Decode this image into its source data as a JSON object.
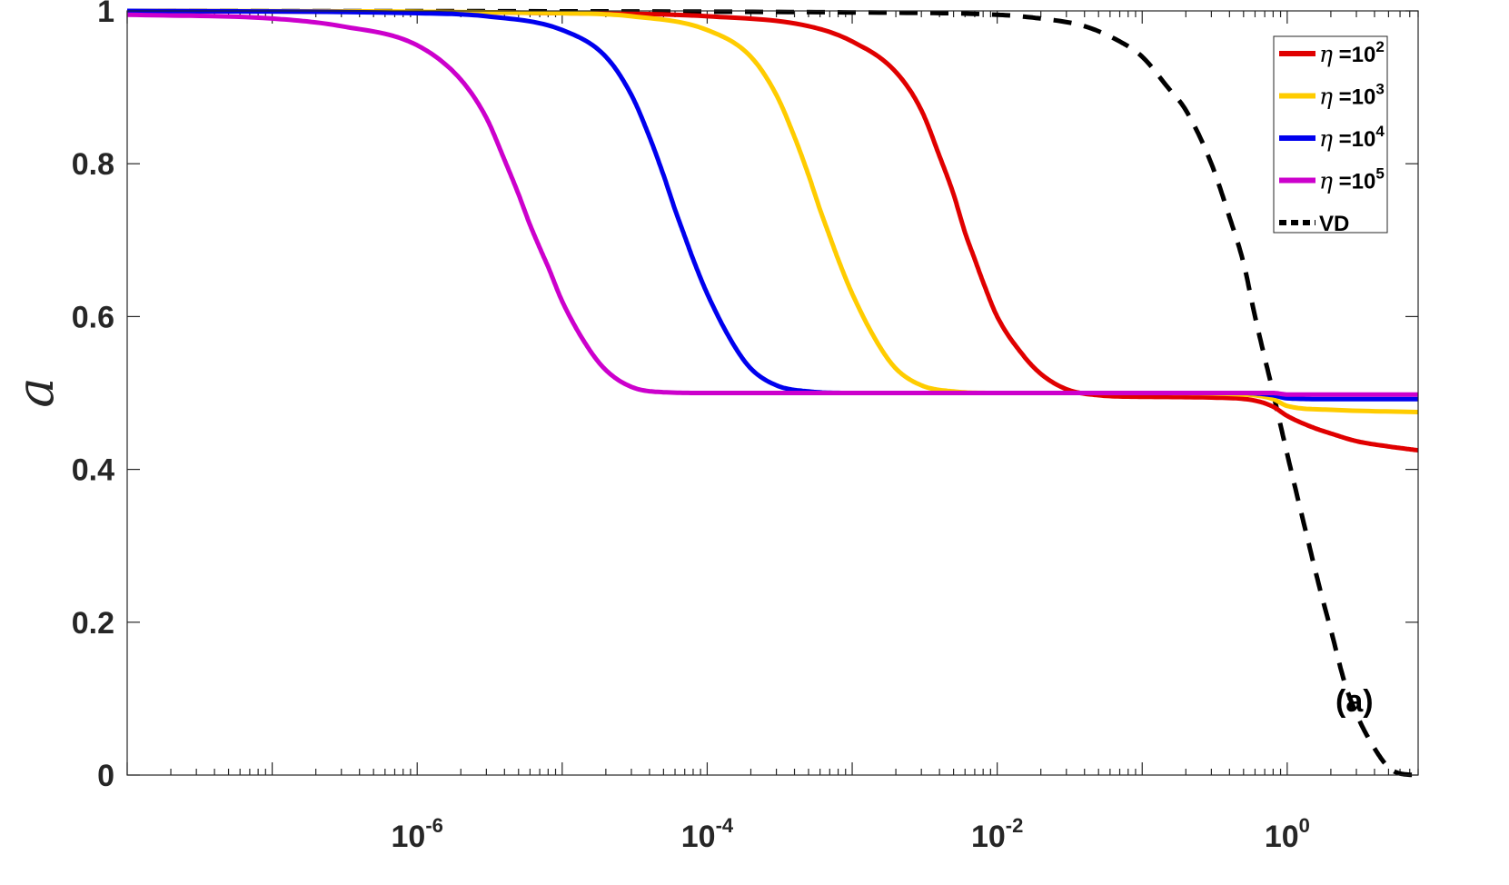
{
  "chart_data": {
    "type": "line",
    "x_scale": "log",
    "xlim": [
      1e-08,
      8
    ],
    "ylim": [
      0,
      1
    ],
    "xlabel": "",
    "ylabel": "a",
    "title": "",
    "grid": false,
    "legend_position": "top-right",
    "annotation": "(a)",
    "x_tick_labels": [
      {
        "base": "10",
        "exp": "-6",
        "value": 1e-06
      },
      {
        "base": "10",
        "exp": "-4",
        "value": 0.0001
      },
      {
        "base": "10",
        "exp": "-2",
        "value": 0.01
      },
      {
        "base": "10",
        "exp": "0",
        "value": 1
      }
    ],
    "y_tick_labels": [
      "0",
      "0.2",
      "0.4",
      "0.6",
      "0.8",
      "1"
    ],
    "y_tick_values": [
      0,
      0.2,
      0.4,
      0.6,
      0.8,
      1
    ],
    "series": [
      {
        "name": "η =10^2",
        "legend_symbol": "η",
        "legend_base": " =10",
        "legend_exp": "2",
        "color": "#e00000",
        "dash": "solid",
        "x": [
          1e-08,
          1e-05,
          0.0001,
          0.0005,
          0.001,
          0.002,
          0.003,
          0.004,
          0.005,
          0.006,
          0.007,
          0.008,
          0.01,
          0.015,
          0.02,
          0.03,
          0.05,
          0.1,
          0.3,
          0.6,
          0.8,
          1,
          1.5,
          2,
          3,
          5,
          8
        ],
        "y": [
          1.0,
          0.997,
          0.993,
          0.98,
          0.96,
          0.92,
          0.87,
          0.81,
          0.76,
          0.71,
          0.675,
          0.645,
          0.6,
          0.55,
          0.525,
          0.505,
          0.497,
          0.495,
          0.494,
          0.49,
          0.482,
          0.47,
          0.455,
          0.447,
          0.437,
          0.43,
          0.425
        ]
      },
      {
        "name": "η =10^3",
        "legend_symbol": "η",
        "legend_base": " =10",
        "legend_exp": "3",
        "color": "#ffcc00",
        "dash": "solid",
        "x": [
          1e-08,
          1e-05,
          3e-05,
          0.0001,
          0.0002,
          0.0003,
          0.0004,
          0.0005,
          0.0006,
          0.0007,
          0.0008,
          0.001,
          0.0015,
          0.002,
          0.003,
          0.005,
          0.01,
          0.1,
          0.5,
          0.8,
          1,
          2,
          8
        ],
        "y": [
          1.0,
          0.997,
          0.993,
          0.975,
          0.94,
          0.89,
          0.835,
          0.785,
          0.74,
          0.705,
          0.675,
          0.63,
          0.565,
          0.532,
          0.51,
          0.502,
          0.5,
          0.5,
          0.498,
          0.492,
          0.483,
          0.478,
          0.475
        ]
      },
      {
        "name": "η =10^4",
        "legend_symbol": "η",
        "legend_base": " =10",
        "legend_exp": "4",
        "color": "#0000ee",
        "dash": "solid",
        "x": [
          1e-08,
          1e-06,
          3e-06,
          1e-05,
          2e-05,
          3e-05,
          4e-05,
          5e-05,
          6e-05,
          7e-05,
          8e-05,
          0.0001,
          0.00015,
          0.0002,
          0.0003,
          0.0005,
          0.001,
          0.1,
          0.5,
          0.8,
          1,
          2,
          8
        ],
        "y": [
          1.0,
          0.997,
          0.993,
          0.975,
          0.94,
          0.89,
          0.835,
          0.785,
          0.74,
          0.705,
          0.675,
          0.63,
          0.565,
          0.532,
          0.51,
          0.502,
          0.5,
          0.5,
          0.5,
          0.497,
          0.493,
          0.492,
          0.492
        ]
      },
      {
        "name": "η =10^5",
        "legend_symbol": "η",
        "legend_base": " =10",
        "legend_exp": "5",
        "color": "#cc00cc",
        "dash": "solid",
        "x": [
          1e-08,
          1e-07,
          3e-07,
          1e-06,
          2e-06,
          3e-06,
          4e-06,
          5e-06,
          6e-06,
          7e-06,
          8e-06,
          1e-05,
          1.5e-05,
          2e-05,
          3e-05,
          5e-05,
          0.0001,
          0.1,
          0.8,
          1,
          8
        ],
        "y": [
          0.995,
          0.99,
          0.98,
          0.955,
          0.91,
          0.86,
          0.805,
          0.76,
          0.72,
          0.69,
          0.665,
          0.62,
          0.56,
          0.53,
          0.508,
          0.501,
          0.5,
          0.5,
          0.5,
          0.498,
          0.498
        ]
      },
      {
        "name": "VD",
        "legend_symbol": "",
        "legend_base": "VD",
        "legend_exp": "",
        "color": "#000000",
        "dash": "dashed",
        "x": [
          1e-08,
          0.0001,
          0.001,
          0.01,
          0.02,
          0.04,
          0.07,
          0.1,
          0.15,
          0.2,
          0.3,
          0.4,
          0.5,
          0.6,
          0.8,
          1,
          1.3,
          1.7,
          2,
          2.5,
          3,
          4,
          5,
          6,
          8
        ],
        "y": [
          1.0,
          0.999,
          0.998,
          0.995,
          0.99,
          0.98,
          0.96,
          0.94,
          0.9,
          0.87,
          0.8,
          0.73,
          0.67,
          0.6,
          0.5,
          0.42,
          0.33,
          0.24,
          0.19,
          0.12,
          0.08,
          0.035,
          0.01,
          0.002,
          0.0
        ]
      }
    ]
  }
}
